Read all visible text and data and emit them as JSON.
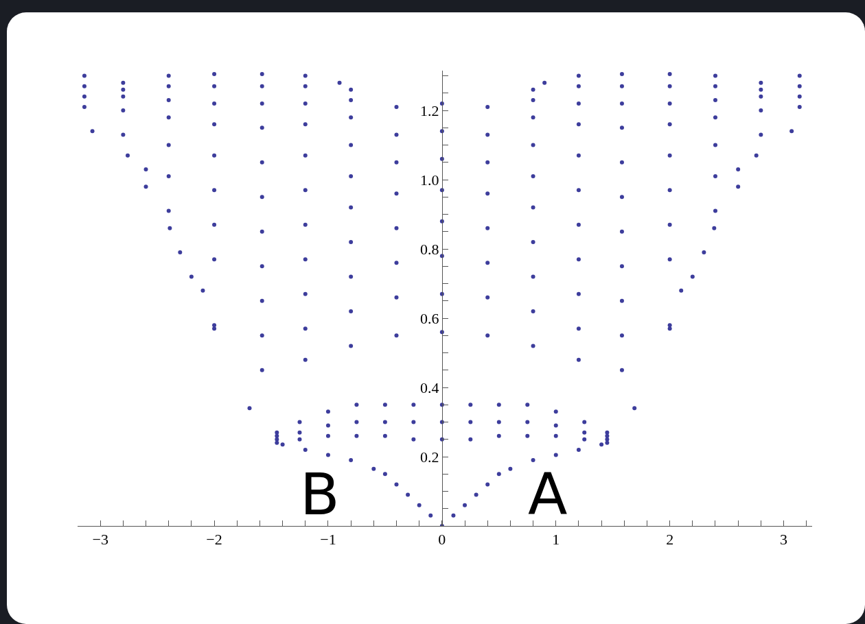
{
  "chart_data": {
    "type": "scatter",
    "marker": "circle",
    "grid": false,
    "xlim": [
      -3.2,
      3.25
    ],
    "ylim": [
      0,
      1.315
    ],
    "xticks": [
      {
        "value": -3,
        "label": "−3"
      },
      {
        "value": -2.8,
        "label": null
      },
      {
        "value": -2.6,
        "label": null
      },
      {
        "value": -2.4,
        "label": null
      },
      {
        "value": -2.2,
        "label": null
      },
      {
        "value": -2,
        "label": "−2"
      },
      {
        "value": -1.8,
        "label": null
      },
      {
        "value": -1.6,
        "label": null
      },
      {
        "value": -1.4,
        "label": null
      },
      {
        "value": -1.2,
        "label": null
      },
      {
        "value": -1,
        "label": "−1"
      },
      {
        "value": -0.8,
        "label": null
      },
      {
        "value": -0.6,
        "label": null
      },
      {
        "value": -0.4,
        "label": null
      },
      {
        "value": -0.2,
        "label": null
      },
      0,
      {
        "value": 0.2,
        "label": null
      },
      {
        "value": 0.4,
        "label": null
      },
      {
        "value": 0.6,
        "label": null
      },
      {
        "value": 0.8,
        "label": null
      },
      1,
      {
        "value": 1.2,
        "label": null
      },
      {
        "value": 1.4,
        "label": null
      },
      {
        "value": 1.6,
        "label": null
      },
      {
        "value": 1.8,
        "label": null
      },
      2,
      {
        "value": 2.2,
        "label": null
      },
      {
        "value": 2.4,
        "label": null
      },
      {
        "value": 2.6,
        "label": null
      },
      {
        "value": 2.8,
        "label": null
      },
      3,
      {
        "value": 3.2,
        "label": null
      }
    ],
    "yticks": [
      {
        "value": 0.05,
        "label": null
      },
      {
        "value": 0.1,
        "label": null
      },
      {
        "value": 0.15,
        "label": null
      },
      0.2,
      {
        "value": 0.25,
        "label": null
      },
      {
        "value": 0.3,
        "label": null
      },
      {
        "value": 0.35,
        "label": null
      },
      0.4,
      {
        "value": 0.45,
        "label": null
      },
      {
        "value": 0.5,
        "label": null
      },
      {
        "value": 0.55,
        "label": null
      },
      0.6,
      {
        "value": 0.65,
        "label": null
      },
      {
        "value": 0.7,
        "label": null
      },
      {
        "value": 0.75,
        "label": null
      },
      0.8,
      {
        "value": 0.85,
        "label": null
      },
      {
        "value": 0.9,
        "label": null
      },
      {
        "value": 0.95,
        "label": null
      },
      {
        "value": 1.0,
        "label": "1.0"
      },
      {
        "value": 1.05,
        "label": null
      },
      {
        "value": 1.1,
        "label": null
      },
      {
        "value": 1.15,
        "label": null
      },
      1.2,
      {
        "value": 1.25,
        "label": null
      },
      {
        "value": 1.3,
        "label": null
      }
    ],
    "series": [
      {
        "color": "#3d3d9c",
        "x": [
          -1.4,
          -1.2,
          -1.0,
          -0.8,
          -0.6,
          -0.5,
          -0.4,
          -0.3,
          -0.2,
          -0.1,
          0,
          0.1,
          0.2,
          0.3,
          0.4,
          0.5,
          0.6,
          0.8,
          1.0,
          1.2,
          1.4
        ],
        "values": [
          0.235,
          0.22,
          0.205,
          0.19,
          0.165,
          0.15,
          0.12,
          0.09,
          0.06,
          0.03,
          0,
          0.03,
          0.06,
          0.09,
          0.12,
          0.15,
          0.165,
          0.19,
          0.205,
          0.22,
          0.235
        ]
      },
      {
        "color": "#3d3d9c",
        "x": [
          -1.45,
          -1.25,
          -1.0,
          -0.75,
          -0.5,
          -0.25,
          0,
          0.25,
          0.5,
          0.75,
          1.0,
          1.25,
          1.45
        ],
        "values": [
          0.24,
          0.25,
          0.26,
          0.26,
          0.26,
          0.25,
          0.25,
          0.25,
          0.26,
          0.26,
          0.26,
          0.25,
          0.24
        ]
      },
      {
        "color": "#3d3d9c",
        "x": [
          -1.45,
          -1.25,
          -1.0,
          -0.75,
          -0.5,
          -0.25,
          0,
          0.25,
          0.5,
          0.75,
          1.0,
          1.25,
          1.45
        ],
        "values": [
          0.26,
          0.27,
          0.29,
          0.3,
          0.3,
          0.3,
          0.3,
          0.3,
          0.3,
          0.3,
          0.29,
          0.27,
          0.26
        ]
      },
      {
        "color": "#3d3d9c",
        "x": [
          -1.45,
          -1.25,
          -1.0,
          -0.75,
          -0.5,
          -0.25,
          0,
          0.25,
          0.5,
          0.75,
          1.0,
          1.25,
          1.45
        ],
        "values": [
          0.27,
          0.3,
          0.33,
          0.35,
          0.35,
          0.35,
          0.35,
          0.35,
          0.35,
          0.35,
          0.33,
          0.3,
          0.27
        ]
      },
      {
        "color": "#3d3d9c",
        "x": [
          -3.07,
          -2.76,
          -2.6,
          -2.39,
          -2.2,
          -2.0,
          -1.69,
          -1.45,
          1.45,
          1.69,
          2.0,
          2.2,
          2.39,
          2.6,
          2.76,
          3.07
        ],
        "values": [
          1.14,
          1.07,
          0.98,
          0.86,
          0.72,
          0.57,
          0.34,
          0.25,
          0.25,
          0.34,
          0.57,
          0.72,
          0.86,
          0.98,
          1.07,
          1.14
        ]
      },
      {
        "color": "#3d3d9c",
        "x": [
          -1.58,
          -1.2,
          -0.8,
          -0.4,
          0,
          0.4,
          0.8,
          1.2,
          1.58
        ],
        "values": [
          0.45,
          0.48,
          0.52,
          0.55,
          0.56,
          0.55,
          0.52,
          0.48,
          0.45
        ]
      },
      {
        "color": "#3d3d9c",
        "x": [
          -2.0,
          -1.58,
          -1.2,
          -0.8,
          -0.4,
          0,
          0.4,
          0.8,
          1.2,
          1.58,
          2.0
        ],
        "values": [
          0.58,
          0.55,
          0.57,
          0.62,
          0.66,
          0.67,
          0.66,
          0.62,
          0.57,
          0.55,
          0.58
        ]
      },
      {
        "color": "#3d3d9c",
        "x": [
          -2.1,
          -1.58,
          -1.2,
          -0.8,
          -0.4,
          0,
          0.4,
          0.8,
          1.2,
          1.58,
          2.1
        ],
        "values": [
          0.68,
          0.65,
          0.67,
          0.72,
          0.76,
          0.78,
          0.76,
          0.72,
          0.67,
          0.65,
          0.68
        ]
      },
      {
        "color": "#3d3d9c",
        "x": [
          -2.3,
          -2.0,
          -1.58,
          -1.2,
          -0.8,
          -0.4,
          0,
          0.4,
          0.8,
          1.2,
          1.58,
          2.0,
          2.3
        ],
        "values": [
          0.79,
          0.77,
          0.75,
          0.77,
          0.82,
          0.86,
          0.88,
          0.86,
          0.82,
          0.77,
          0.75,
          0.77,
          0.79
        ]
      },
      {
        "color": "#3d3d9c",
        "x": [
          -2.4,
          -2.0,
          -1.58,
          -1.2,
          -0.8,
          -0.4,
          0,
          0.4,
          0.8,
          1.2,
          1.58,
          2.0,
          2.4
        ],
        "values": [
          0.91,
          0.87,
          0.85,
          0.87,
          0.92,
          0.96,
          0.97,
          0.96,
          0.92,
          0.87,
          0.85,
          0.87,
          0.91
        ]
      },
      {
        "color": "#3d3d9c",
        "x": [
          -2.6,
          -2.4,
          -2.0,
          -1.58,
          -1.2,
          -0.8,
          -0.4,
          0,
          0.4,
          0.8,
          1.2,
          1.58,
          2.0,
          2.4,
          2.6
        ],
        "values": [
          1.03,
          1.01,
          0.97,
          0.95,
          0.97,
          1.01,
          1.05,
          1.06,
          1.05,
          1.01,
          0.97,
          0.95,
          0.97,
          1.01,
          1.03
        ]
      },
      {
        "color": "#3d3d9c",
        "x": [
          -2.8,
          -2.4,
          -2.0,
          -1.58,
          -1.2,
          -0.8,
          -0.4,
          0,
          0.4,
          0.8,
          1.2,
          1.58,
          2.0,
          2.4,
          2.8
        ],
        "values": [
          1.13,
          1.1,
          1.07,
          1.05,
          1.07,
          1.1,
          1.13,
          1.14,
          1.13,
          1.1,
          1.07,
          1.05,
          1.07,
          1.1,
          1.13
        ]
      },
      {
        "color": "#3d3d9c",
        "x": [
          -3.14,
          -2.8,
          -2.4,
          -2.0,
          -1.58,
          -1.2,
          -0.8,
          -0.4,
          0,
          0.4,
          0.8,
          1.2,
          1.58,
          2.0,
          2.4,
          2.8,
          3.14
        ],
        "values": [
          1.21,
          1.2,
          1.18,
          1.16,
          1.15,
          1.16,
          1.18,
          1.21,
          1.22,
          1.21,
          1.18,
          1.16,
          1.15,
          1.16,
          1.18,
          1.2,
          1.21
        ]
      },
      {
        "color": "#3d3d9c",
        "x": [
          -3.14,
          -2.8,
          -2.4,
          -2.0,
          -1.58,
          -1.2,
          -0.8,
          0.8,
          1.2,
          1.58,
          2.0,
          2.4,
          2.8,
          3.14
        ],
        "values": [
          1.24,
          1.24,
          1.23,
          1.22,
          1.22,
          1.22,
          1.23,
          1.23,
          1.22,
          1.22,
          1.22,
          1.23,
          1.24,
          1.24
        ]
      },
      {
        "color": "#3d3d9c",
        "x": [
          -3.14,
          -2.8,
          -2.4,
          -2.0,
          -1.58,
          -1.2,
          -0.8,
          0.8,
          1.2,
          1.58,
          2.0,
          2.4,
          2.8,
          3.14
        ],
        "values": [
          1.27,
          1.26,
          1.27,
          1.27,
          1.27,
          1.27,
          1.26,
          1.26,
          1.27,
          1.27,
          1.27,
          1.27,
          1.26,
          1.27
        ]
      },
      {
        "color": "#3d3d9c",
        "x": [
          -3.14,
          -2.8,
          -2.4,
          -2.0,
          -1.58,
          -1.2,
          -0.9,
          0.9,
          1.2,
          1.58,
          2.0,
          2.4,
          2.8,
          3.14
        ],
        "values": [
          1.3,
          1.28,
          1.3,
          1.305,
          1.305,
          1.3,
          1.28,
          1.28,
          1.3,
          1.305,
          1.305,
          1.3,
          1.28,
          1.3
        ]
      }
    ],
    "annotations": [
      "B",
      "A"
    ]
  }
}
